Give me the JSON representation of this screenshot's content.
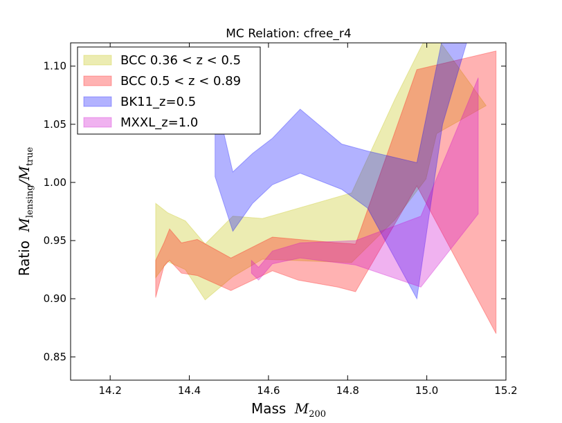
{
  "chart_data": {
    "type": "area",
    "title": "MC Relation: cfree_r4",
    "xlabel": "Mass",
    "xlabel_math": "M",
    "xlabel_math_sub": "200",
    "ylabel": "Ratio",
    "ylabel_math": "M",
    "ylabel_math_sub": "lensing",
    "ylabel_math_div": "/M",
    "ylabel_math_sub2": "true",
    "xlim": [
      14.1,
      15.2
    ],
    "ylim": [
      0.83,
      1.12
    ],
    "xticks": [
      "14.2",
      "14.4",
      "14.6",
      "14.8",
      "15.0",
      "15.2"
    ],
    "yticks": [
      "0.85",
      "0.90",
      "0.95",
      "1.00",
      "1.05",
      "1.10"
    ],
    "legend_position": "top-left",
    "series": [
      {
        "name": "BCC 0.36 < z < 0.5",
        "color": "#bfbf00",
        "x": [
          14.315,
          14.345,
          14.39,
          14.44,
          14.51,
          14.585,
          14.81,
          14.92,
          14.998,
          15.025,
          15.15
        ],
        "upper": [
          0.982,
          0.974,
          0.967,
          0.947,
          0.971,
          0.969,
          0.991,
          1.072,
          1.125,
          1.125,
          1.066
        ],
        "lower": [
          0.918,
          0.932,
          0.925,
          0.899,
          0.919,
          0.934,
          0.931,
          0.968,
          1.003,
          1.042,
          1.066
        ]
      },
      {
        "name": "BCC 0.5 < z < 0.89",
        "color": "#ff0000",
        "x": [
          14.315,
          14.336,
          14.35,
          14.38,
          14.42,
          14.505,
          14.61,
          14.675,
          14.775,
          14.82,
          14.975,
          15.175
        ],
        "upper": [
          0.933,
          0.948,
          0.96,
          0.948,
          0.951,
          0.935,
          0.953,
          0.951,
          0.948,
          0.947,
          1.097,
          1.113
        ],
        "lower": [
          0.901,
          0.928,
          0.933,
          0.922,
          0.92,
          0.907,
          0.924,
          0.916,
          0.91,
          0.906,
          0.997,
          0.87
        ]
      },
      {
        "name": "BK11_z=0.5",
        "color": "#0000ff",
        "x": [
          14.465,
          14.51,
          14.56,
          14.61,
          14.68,
          14.785,
          14.85,
          14.975,
          15.04,
          15.105
        ],
        "upper": [
          1.075,
          1.009,
          1.025,
          1.038,
          1.063,
          1.033,
          1.027,
          1.017,
          1.125,
          1.125
        ],
        "lower": [
          1.005,
          0.958,
          0.982,
          0.998,
          1.008,
          0.994,
          0.978,
          0.9,
          1.05,
          1.125
        ]
      },
      {
        "name": "MXXL_z=1.0",
        "color": "#cc00cc",
        "x": [
          14.557,
          14.575,
          14.61,
          14.68,
          14.82,
          14.985,
          15.13
        ],
        "upper": [
          0.933,
          0.927,
          0.941,
          0.948,
          0.95,
          0.971,
          1.09
        ],
        "lower": [
          0.922,
          0.916,
          0.93,
          0.935,
          0.929,
          0.91,
          0.973
        ]
      }
    ]
  }
}
